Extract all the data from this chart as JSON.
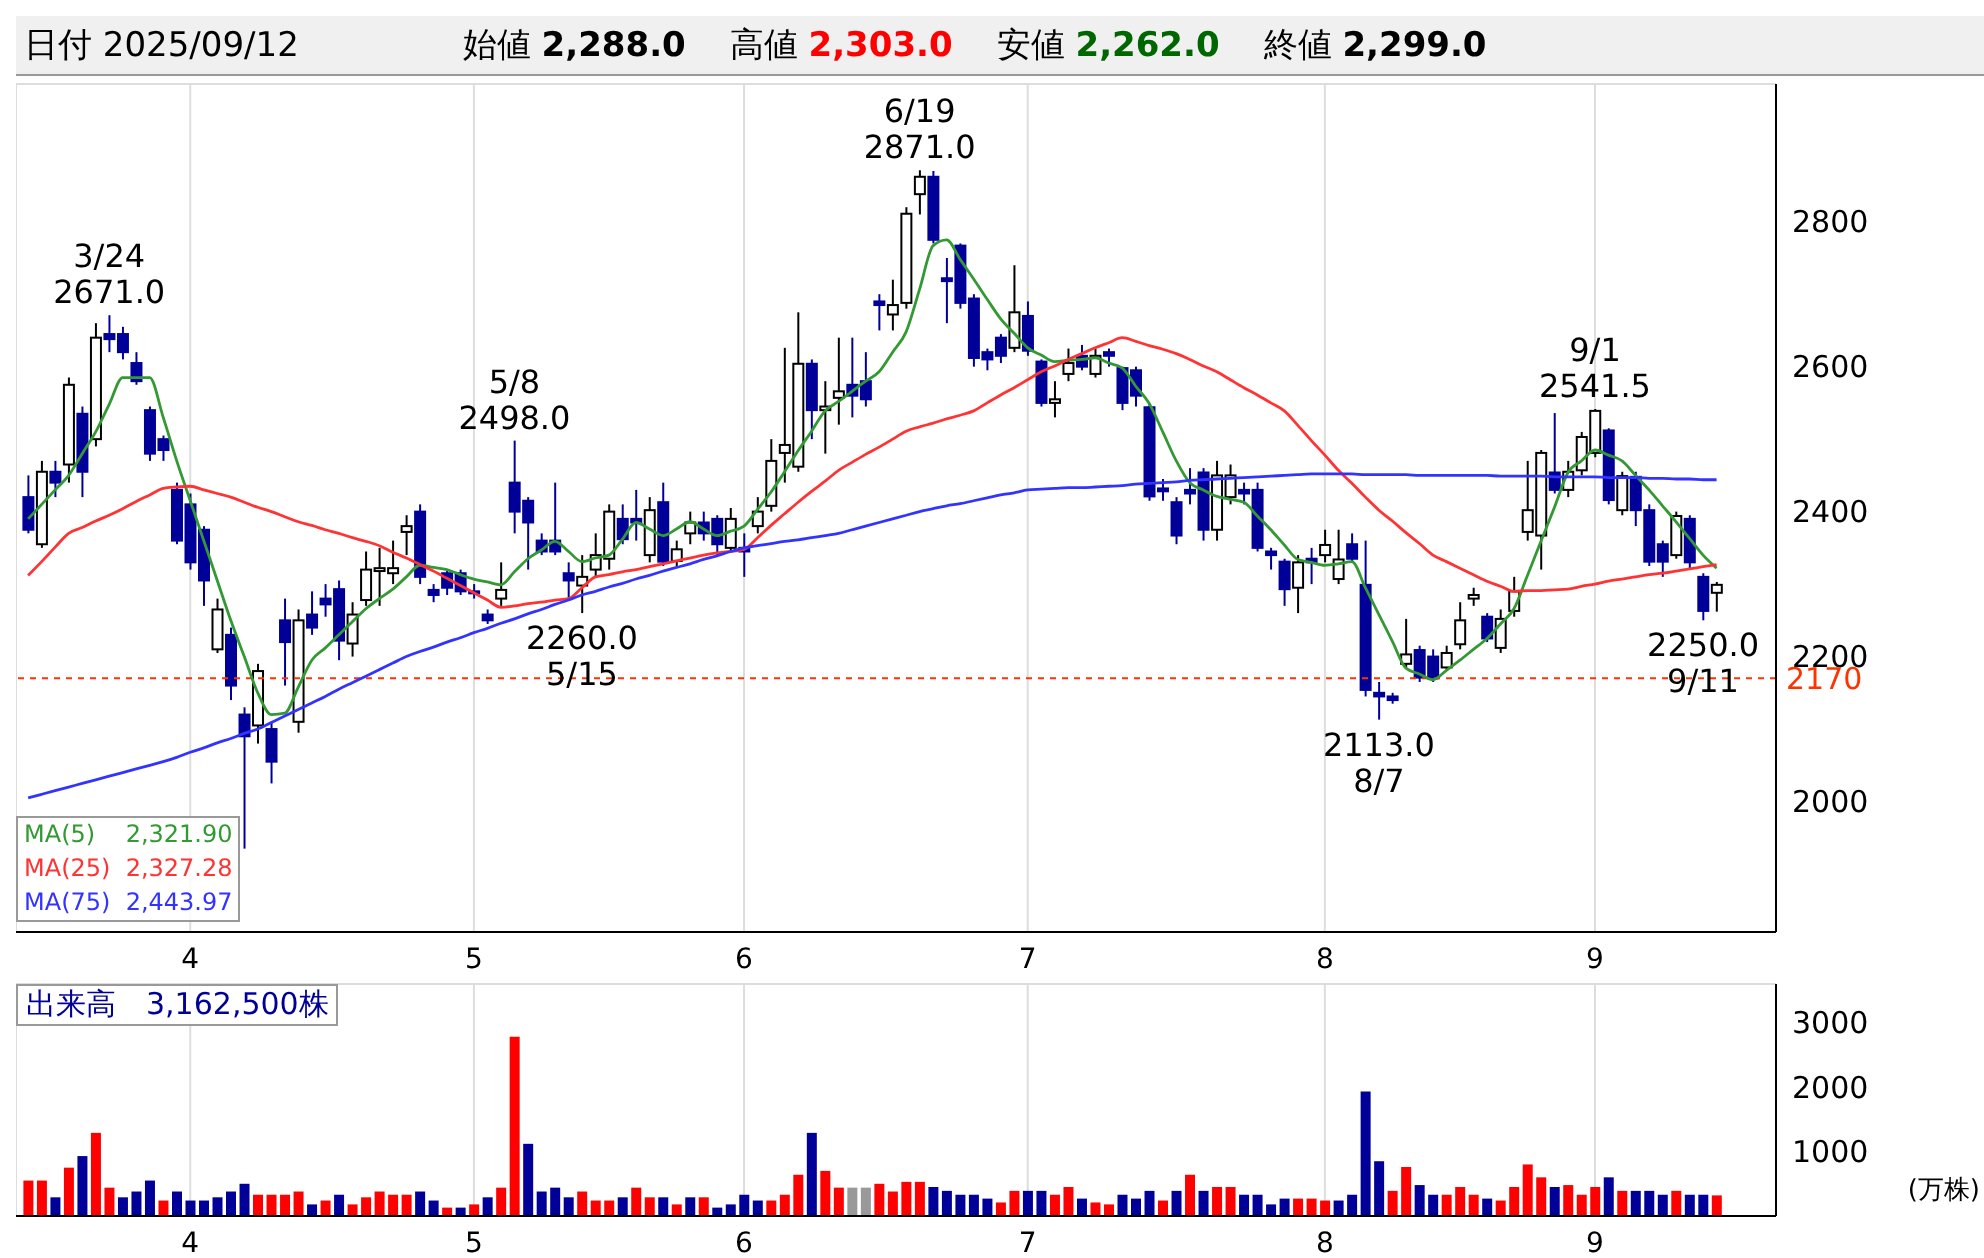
{
  "chart_data": [
    {
      "type": "candlestick",
      "title": "日付 2025/09/12",
      "annotations": [
        "始値 2,288.0",
        "高値 2,303.0",
        "安値 2,262.0",
        "終値 2,299.0",
        {
          "text": "3/24\n2671.0",
          "y": 2671
        },
        {
          "text": "5/8\n2498.0",
          "y": 2498
        },
        {
          "text": "2260.0\n5/15",
          "y": 2260
        },
        {
          "text": "6/19\n2871.0",
          "y": 2871
        },
        {
          "text": "2113.0\n8/7",
          "y": 2113
        },
        {
          "text": "9/1\n2541.5",
          "y": 2541.5
        },
        {
          "text": "2250.0\n9/11",
          "y": 2250
        }
      ],
      "categories": [
        null,
        null,
        null,
        null,
        null,
        null,
        null,
        null,
        null,
        null,
        null,
        null,
        "4",
        null,
        null,
        null,
        null,
        null,
        null,
        null,
        null,
        null,
        null,
        null,
        null,
        null,
        null,
        null,
        null,
        null,
        null,
        null,
        null,
        "5",
        null,
        null,
        null,
        null,
        null,
        null,
        null,
        null,
        null,
        null,
        null,
        null,
        null,
        null,
        null,
        null,
        null,
        null,
        null,
        "6",
        null,
        null,
        null,
        null,
        null,
        null,
        null,
        null,
        null,
        null,
        null,
        null,
        null,
        null,
        null,
        null,
        null,
        null,
        null,
        null,
        "7",
        null,
        null,
        null,
        null,
        null,
        null,
        null,
        null,
        null,
        null,
        null,
        null,
        null,
        null,
        null,
        null,
        null,
        null,
        null,
        null,
        null,
        "8",
        null,
        null,
        null,
        null,
        null,
        null,
        null,
        null,
        null,
        null,
        null,
        null,
        null,
        null,
        null,
        null,
        null,
        null,
        null,
        "9",
        null,
        null,
        null,
        null,
        null,
        null,
        null,
        null,
        null
      ],
      "ohlc": [
        [
          2420,
          2450,
          2370,
          2375
        ],
        [
          2355,
          2470,
          2350,
          2455
        ],
        [
          2455,
          2470,
          2420,
          2440
        ],
        [
          2465,
          2585,
          2440,
          2575
        ],
        [
          2535,
          2545,
          2420,
          2455
        ],
        [
          2500,
          2660,
          2490,
          2640
        ],
        [
          2645,
          2671,
          2620,
          2638
        ],
        [
          2645,
          2655,
          2610,
          2620
        ],
        [
          2605,
          2620,
          2575,
          2580
        ],
        [
          2540,
          2545,
          2470,
          2480
        ],
        [
          2500,
          2505,
          2470,
          2485
        ],
        [
          2430,
          2440,
          2355,
          2360
        ],
        [
          2410,
          2425,
          2320,
          2330
        ],
        [
          2375,
          2380,
          2270,
          2305
        ],
        [
          2210,
          2280,
          2205,
          2265
        ],
        [
          2230,
          2240,
          2140,
          2160
        ],
        [
          2120,
          2130,
          1935,
          2090
        ],
        [
          2105,
          2190,
          2080,
          2180
        ],
        [
          2100,
          2110,
          2025,
          2055
        ],
        [
          2250,
          2280,
          2160,
          2220
        ],
        [
          2110,
          2265,
          2095,
          2250
        ],
        [
          2258,
          2290,
          2230,
          2240
        ],
        [
          2280,
          2300,
          2255,
          2272
        ],
        [
          2293,
          2305,
          2195,
          2222
        ],
        [
          2218,
          2275,
          2200,
          2258
        ],
        [
          2278,
          2345,
          2270,
          2320
        ],
        [
          2318,
          2350,
          2270,
          2322
        ],
        [
          2315,
          2360,
          2300,
          2322
        ],
        [
          2372,
          2395,
          2340,
          2380
        ],
        [
          2400,
          2410,
          2300,
          2310
        ],
        [
          2292,
          2300,
          2275,
          2285
        ],
        [
          2315,
          2320,
          2285,
          2295
        ],
        [
          2315,
          2320,
          2285,
          2290
        ],
        [
          2290,
          2300,
          2280,
          2288
        ],
        [
          2258,
          2265,
          2245,
          2250
        ],
        [
          2280,
          2330,
          2270,
          2292
        ],
        [
          2440,
          2498,
          2370,
          2400
        ],
        [
          2415,
          2420,
          2320,
          2385
        ],
        [
          2360,
          2370,
          2340,
          2345
        ],
        [
          2360,
          2440,
          2340,
          2345
        ],
        [
          2315,
          2330,
          2280,
          2305
        ],
        [
          2298,
          2340,
          2260,
          2310
        ],
        [
          2320,
          2370,
          2310,
          2340
        ],
        [
          2335,
          2410,
          2320,
          2400
        ],
        [
          2390,
          2410,
          2355,
          2362
        ],
        [
          2390,
          2430,
          2360,
          2385
        ],
        [
          2340,
          2420,
          2330,
          2402
        ],
        [
          2413,
          2440,
          2325,
          2331
        ],
        [
          2332,
          2360,
          2325,
          2348
        ],
        [
          2370,
          2400,
          2355,
          2385
        ],
        [
          2385,
          2400,
          2360,
          2370
        ],
        [
          2390,
          2395,
          2340,
          2355
        ],
        [
          2350,
          2405,
          2345,
          2390
        ],
        [
          2350,
          2370,
          2310,
          2345
        ],
        [
          2380,
          2420,
          2370,
          2400
        ],
        [
          2408,
          2500,
          2400,
          2470
        ],
        [
          2481,
          2626,
          2440,
          2492
        ],
        [
          2462,
          2675,
          2455,
          2604
        ],
        [
          2604,
          2610,
          2500,
          2540
        ],
        [
          2540,
          2580,
          2480,
          2545
        ],
        [
          2557,
          2640,
          2520,
          2566
        ],
        [
          2575,
          2640,
          2530,
          2560
        ],
        [
          2580,
          2620,
          2545,
          2555
        ],
        [
          2690,
          2700,
          2650,
          2685
        ],
        [
          2672,
          2720,
          2650,
          2685
        ],
        [
          2688,
          2820,
          2680,
          2811
        ],
        [
          2838,
          2871,
          2810,
          2862
        ],
        [
          2862,
          2870,
          2770,
          2775
        ],
        [
          2722,
          2750,
          2660,
          2718
        ],
        [
          2767,
          2770,
          2680,
          2688
        ],
        [
          2694,
          2700,
          2600,
          2612
        ],
        [
          2620,
          2625,
          2595,
          2610
        ],
        [
          2640,
          2645,
          2605,
          2615
        ],
        [
          2626,
          2740,
          2620,
          2675
        ],
        [
          2670,
          2690,
          2615,
          2622
        ],
        [
          2607,
          2610,
          2545,
          2550
        ],
        [
          2550,
          2580,
          2530,
          2555
        ],
        [
          2590,
          2625,
          2580,
          2605
        ],
        [
          2615,
          2630,
          2595,
          2600
        ],
        [
          2590,
          2625,
          2585,
          2615
        ],
        [
          2620,
          2625,
          2600,
          2615
        ],
        [
          2598,
          2600,
          2540,
          2550
        ],
        [
          2595,
          2600,
          2545,
          2560
        ],
        [
          2544,
          2550,
          2415,
          2421
        ],
        [
          2432,
          2445,
          2415,
          2428
        ],
        [
          2413,
          2420,
          2355,
          2367
        ],
        [
          2430,
          2460,
          2410,
          2425
        ],
        [
          2454,
          2460,
          2360,
          2375
        ],
        [
          2375,
          2470,
          2360,
          2450
        ],
        [
          2420,
          2465,
          2410,
          2450
        ],
        [
          2430,
          2440,
          2410,
          2425
        ],
        [
          2430,
          2440,
          2345,
          2350
        ],
        [
          2345,
          2350,
          2320,
          2340
        ],
        [
          2331,
          2335,
          2270,
          2293
        ],
        [
          2295,
          2340,
          2260,
          2330
        ],
        [
          2335,
          2350,
          2300,
          2330
        ],
        [
          2340,
          2375,
          2330,
          2354
        ],
        [
          2307,
          2375,
          2300,
          2334
        ],
        [
          2355,
          2370,
          2330,
          2335
        ],
        [
          2299,
          2360,
          2145,
          2154
        ],
        [
          2150,
          2165,
          2113,
          2145
        ],
        [
          2145,
          2150,
          2135,
          2140
        ],
        [
          2190,
          2252,
          2185,
          2203
        ],
        [
          2209,
          2215,
          2165,
          2171
        ],
        [
          2200,
          2210,
          2165,
          2170
        ],
        [
          2185,
          2215,
          2180,
          2205
        ],
        [
          2217,
          2275,
          2210,
          2250
        ],
        [
          2280,
          2295,
          2270,
          2285
        ],
        [
          2255,
          2260,
          2220,
          2225
        ],
        [
          2212,
          2265,
          2205,
          2252
        ],
        [
          2263,
          2310,
          2255,
          2290
        ],
        [
          2372,
          2470,
          2360,
          2402
        ],
        [
          2367,
          2485,
          2320,
          2481
        ],
        [
          2454,
          2536,
          2425,
          2430
        ],
        [
          2430,
          2470,
          2420,
          2455
        ],
        [
          2457,
          2510,
          2450,
          2503
        ],
        [
          2481,
          2541.5,
          2475,
          2539
        ],
        [
          2512,
          2515,
          2410,
          2416
        ],
        [
          2402,
          2455,
          2395,
          2449
        ],
        [
          2448,
          2455,
          2380,
          2402
        ],
        [
          2402,
          2410,
          2325,
          2331
        ],
        [
          2355,
          2360,
          2310,
          2331
        ],
        [
          2340,
          2400,
          2335,
          2394
        ],
        [
          2390,
          2395,
          2320,
          2330
        ],
        [
          2310,
          2315,
          2250,
          2263
        ],
        [
          2288,
          2303,
          2262,
          2299
        ]
      ],
      "colors": [
        "#000099",
        "#ffffff",
        "#000099",
        "#ffffff",
        "#000099",
        "#ffffff",
        "#000099",
        "#000099",
        "#000099",
        "#000099",
        "#000099",
        "#000099",
        "#000099",
        "#000099",
        "#ffffff",
        "#000099",
        "#000099",
        "#ffffff",
        "#000099",
        "#000099",
        "#ffffff",
        "#000099",
        "#000099",
        "#000099",
        "#ffffff",
        "#ffffff",
        "#ffffff",
        "#ffffff",
        "#ffffff",
        "#000099",
        "#000099",
        "#000099",
        "#000099",
        "#000099",
        "#000099",
        "#ffffff",
        "#000099",
        "#000099",
        "#000099",
        "#000099",
        "#000099",
        "#ffffff",
        "#ffffff",
        "#ffffff",
        "#000099",
        "#000099",
        "#ffffff",
        "#000099",
        "#ffffff",
        "#ffffff",
        "#000099",
        "#000099",
        "#ffffff",
        "#000099",
        "#ffffff",
        "#ffffff",
        "#ffffff",
        "#ffffff",
        "#000099",
        "#ffffff",
        "#ffffff",
        "#000099",
        "#000099",
        "#000099",
        "#ffffff",
        "#ffffff",
        "#ffffff",
        "#000099",
        "#000099",
        "#000099",
        "#000099",
        "#000099",
        "#000099",
        "#ffffff",
        "#000099",
        "#000099",
        "#ffffff",
        "#ffffff",
        "#000099",
        "#ffffff",
        "#000099",
        "#000099",
        "#000099",
        "#000099",
        "#000099",
        "#000099",
        "#000099",
        "#000099",
        "#ffffff",
        "#ffffff",
        "#000099",
        "#000099",
        "#000099",
        "#000099",
        "#ffffff",
        "#000099",
        "#ffffff",
        "#ffffff",
        "#000099",
        "#000099",
        "#000099",
        "#000099",
        "#ffffff",
        "#000099",
        "#000099",
        "#ffffff",
        "#ffffff",
        "#ffffff",
        "#000099",
        "#ffffff",
        "#ffffff",
        "#ffffff",
        "#ffffff",
        "#000099",
        "#ffffff",
        "#ffffff",
        "#ffffff",
        "#000099",
        "#ffffff",
        "#000099",
        "#000099",
        "#000099",
        "#ffffff",
        "#000099",
        "#000099",
        "#ffffff"
      ],
      "series": [
        {
          "type": "line",
          "name": "MA(5)    2,321.90",
          "color": "#339933",
          "values": [
            2390,
            2410,
            2430,
            2450,
            2480,
            2510,
            2548,
            2585,
            2585,
            2585,
            2530,
            2470,
            2415,
            2360,
            2305,
            2250,
            2200,
            2150,
            2120,
            2122,
            2158,
            2195,
            2212,
            2230,
            2248,
            2266,
            2280,
            2293,
            2310,
            2326,
            2323,
            2320,
            2313,
            2307,
            2303,
            2299,
            2317,
            2335,
            2347,
            2359,
            2345,
            2331,
            2336,
            2340,
            2362,
            2385,
            2376,
            2367,
            2376,
            2386,
            2376,
            2367,
            2373,
            2380,
            2403,
            2427,
            2455,
            2484,
            2511,
            2539,
            2552,
            2566,
            2580,
            2593,
            2620,
            2648,
            2707,
            2767,
            2775,
            2748,
            2721,
            2693,
            2666,
            2646,
            2626,
            2616,
            2607,
            2609,
            2610,
            2612,
            2605,
            2598,
            2573,
            2549,
            2510,
            2470,
            2440,
            2430,
            2421,
            2417,
            2413,
            2394,
            2375,
            2354,
            2334,
            2330,
            2326,
            2328,
            2331,
            2295,
            2258,
            2221,
            2184,
            2176,
            2168,
            2181,
            2195,
            2210,
            2225,
            2245,
            2266,
            2312,
            2359,
            2406,
            2454,
            2470,
            2485,
            2478,
            2470,
            2450,
            2430,
            2408,
            2386,
            2363,
            2340,
            2322
          ]
        },
        {
          "type": "line",
          "name": "MA(25)  2,327.28",
          "color": "#ff3333",
          "values": [
            2312,
            2331,
            2351,
            2370,
            2378,
            2387,
            2395,
            2404,
            2414,
            2423,
            2432,
            2434,
            2435,
            2430,
            2425,
            2420,
            2413,
            2406,
            2400,
            2393,
            2386,
            2381,
            2375,
            2370,
            2364,
            2359,
            2353,
            2344,
            2336,
            2327,
            2318,
            2308,
            2298,
            2288,
            2278,
            2268,
            2270,
            2273,
            2275,
            2278,
            2280,
            2295,
            2310,
            2313,
            2317,
            2320,
            2324,
            2328,
            2332,
            2336,
            2340,
            2343,
            2345,
            2348,
            2364,
            2381,
            2397,
            2413,
            2428,
            2442,
            2457,
            2468,
            2479,
            2489,
            2500,
            2511,
            2517,
            2522,
            2528,
            2533,
            2539,
            2550,
            2561,
            2571,
            2582,
            2593,
            2601,
            2610,
            2618,
            2626,
            2633,
            2640,
            2635,
            2629,
            2624,
            2618,
            2610,
            2601,
            2593,
            2582,
            2571,
            2561,
            2550,
            2539,
            2519,
            2498,
            2478,
            2457,
            2439,
            2420,
            2402,
            2387,
            2371,
            2356,
            2340,
            2331,
            2322,
            2313,
            2304,
            2297,
            2290,
            2291,
            2291,
            2292,
            2293,
            2297,
            2300,
            2304,
            2307,
            2310,
            2313,
            2315,
            2318,
            2321,
            2324,
            2327
          ]
        },
        {
          "type": "line",
          "name": "MA(75)  2,443.97",
          "color": "#3333ff",
          "values": [
            2005,
            2010,
            2015,
            2020,
            2025,
            2030,
            2035,
            2040,
            2045,
            2050,
            2055,
            2061,
            2068,
            2074,
            2081,
            2087,
            2094,
            2100,
            2109,
            2118,
            2127,
            2136,
            2145,
            2155,
            2164,
            2173,
            2182,
            2191,
            2200,
            2207,
            2213,
            2220,
            2226,
            2233,
            2239,
            2246,
            2252,
            2259,
            2265,
            2272,
            2278,
            2285,
            2290,
            2296,
            2301,
            2307,
            2312,
            2318,
            2323,
            2328,
            2334,
            2339,
            2345,
            2350,
            2353,
            2356,
            2359,
            2361,
            2364,
            2367,
            2370,
            2375,
            2380,
            2385,
            2390,
            2395,
            2400,
            2404,
            2408,
            2411,
            2415,
            2419,
            2423,
            2426,
            2430,
            2431,
            2432,
            2433,
            2433,
            2434,
            2435,
            2436,
            2438,
            2439,
            2440,
            2441,
            2443,
            2444,
            2445,
            2446,
            2447,
            2448,
            2449,
            2450,
            2451,
            2452,
            2452,
            2452,
            2452,
            2451,
            2451,
            2451,
            2451,
            2450,
            2450,
            2450,
            2450,
            2450,
            2450,
            2449,
            2449,
            2449,
            2449,
            2448,
            2448,
            2448,
            2448,
            2447,
            2447,
            2447,
            2446,
            2446,
            2445,
            2445,
            2444,
            2444
          ]
        }
      ],
      "ylim": [
        1820,
        2990
      ],
      "yticks": [
        2000,
        2200,
        2400,
        2600,
        2800
      ],
      "ref_lines": [
        {
          "axis": "y",
          "value": 2170,
          "label": "2170",
          "color": "#ff3300",
          "line_style": "dashed"
        }
      ],
      "grid": true,
      "legend": "bottom left"
    },
    {
      "type": "bar",
      "title": "出来高　3,162,500株",
      "ylabel": "(万株)",
      "categories": [
        null,
        null,
        null,
        null,
        null,
        null,
        null,
        null,
        null,
        null,
        null,
        null,
        "4",
        null,
        null,
        null,
        null,
        null,
        null,
        null,
        null,
        null,
        null,
        null,
        null,
        null,
        null,
        null,
        null,
        null,
        null,
        null,
        null,
        "5",
        null,
        null,
        null,
        null,
        null,
        null,
        null,
        null,
        null,
        null,
        null,
        null,
        null,
        null,
        null,
        null,
        null,
        null,
        null,
        "6",
        null,
        null,
        null,
        null,
        null,
        null,
        null,
        null,
        null,
        null,
        null,
        null,
        null,
        null,
        null,
        null,
        null,
        null,
        null,
        null,
        "7",
        null,
        null,
        null,
        null,
        null,
        null,
        null,
        null,
        null,
        null,
        null,
        null,
        null,
        null,
        null,
        null,
        null,
        null,
        null,
        null,
        null,
        "8",
        null,
        null,
        null,
        null,
        null,
        null,
        null,
        null,
        null,
        null,
        null,
        null,
        null,
        null,
        null,
        null,
        null,
        null,
        null,
        "9",
        null,
        null,
        null,
        null,
        null,
        null,
        null,
        null,
        null
      ],
      "values": [
        550,
        550,
        290,
        750,
        930,
        1290,
        440,
        290,
        380,
        550,
        240,
        380,
        240,
        240,
        290,
        380,
        500,
        330,
        330,
        330,
        380,
        180,
        240,
        330,
        180,
        290,
        380,
        330,
        330,
        380,
        240,
        130,
        130,
        180,
        290,
        440,
        2780,
        1120,
        380,
        440,
        290,
        380,
        240,
        240,
        290,
        440,
        290,
        290,
        180,
        290,
        290,
        130,
        180,
        330,
        240,
        240,
        330,
        640,
        1290,
        700,
        440,
        440,
        440,
        500,
        380,
        530,
        530,
        450,
        390,
        330,
        330,
        270,
        210,
        390,
        390,
        390,
        330,
        450,
        270,
        210,
        180,
        330,
        270,
        390,
        240,
        390,
        640,
        390,
        450,
        450,
        330,
        330,
        180,
        270,
        270,
        270,
        240,
        240,
        330,
        1930,
        850,
        390,
        760,
        480,
        330,
        330,
        450,
        330,
        270,
        240,
        450,
        800,
        600,
        450,
        480,
        330,
        450,
        600,
        390,
        390,
        390,
        330,
        390,
        330,
        330,
        320
      ],
      "colors": [
        "#ff0000",
        "#ff0000",
        "#000099",
        "#ff0000",
        "#000099",
        "#ff0000",
        "#ff0000",
        "#000099",
        "#000099",
        "#000099",
        "#ff0000",
        "#000099",
        "#000099",
        "#000099",
        "#000099",
        "#000099",
        "#000099",
        "#ff0000",
        "#ff0000",
        "#ff0000",
        "#ff0000",
        "#000099",
        "#ff0000",
        "#000099",
        "#ff0000",
        "#ff0000",
        "#ff0000",
        "#ff0000",
        "#ff0000",
        "#000099",
        "#000099",
        "#ff0000",
        "#000099",
        "#ff0000",
        "#000099",
        "#ff0000",
        "#ff0000",
        "#000099",
        "#000099",
        "#000099",
        "#000099",
        "#ff0000",
        "#ff0000",
        "#ff0000",
        "#000099",
        "#ff0000",
        "#ff0000",
        "#000099",
        "#ff0000",
        "#000099",
        "#ff0000",
        "#000099",
        "#000099",
        "#000099",
        "#000099",
        "#ff0000",
        "#ff0000",
        "#ff0000",
        "#000099",
        "#ff0000",
        "#ff0000",
        "#999999",
        "#999999",
        "#ff0000",
        "#ff0000",
        "#ff0000",
        "#ff0000",
        "#000099",
        "#000099",
        "#000099",
        "#000099",
        "#000099",
        "#ff0000",
        "#ff0000",
        "#000099",
        "#000099",
        "#ff0000",
        "#ff0000",
        "#000099",
        "#ff0000",
        "#ff0000",
        "#000099",
        "#000099",
        "#000099",
        "#ff0000",
        "#000099",
        "#ff0000",
        "#000099",
        "#ff0000",
        "#ff0000",
        "#000099",
        "#000099",
        "#000099",
        "#000099",
        "#ff0000",
        "#ff0000",
        "#ff0000",
        "#000099",
        "#000099",
        "#000099",
        "#000099",
        "#ff0000",
        "#ff0000",
        "#000099",
        "#000099",
        "#ff0000",
        "#ff0000",
        "#ff0000",
        "#000099",
        "#ff0000",
        "#ff0000",
        "#ff0000",
        "#ff0000",
        "#000099",
        "#ff0000",
        "#ff0000",
        "#ff0000",
        "#000099",
        "#ff0000",
        "#000099",
        "#000099",
        "#000099",
        "#ff0000",
        "#000099",
        "#000099",
        "#ff0000"
      ],
      "ylim": [
        0,
        3600
      ],
      "yticks": [
        1000,
        2000,
        3000
      ],
      "grid": true
    }
  ]
}
